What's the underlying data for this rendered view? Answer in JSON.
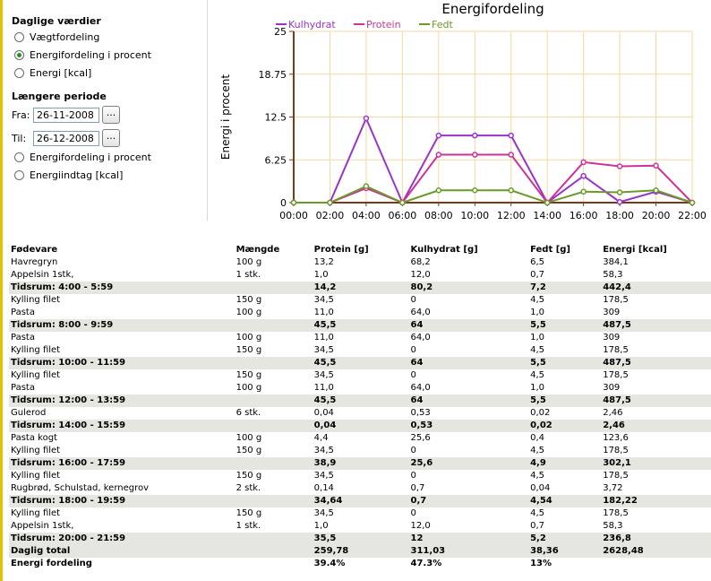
{
  "sidebar": {
    "daily_title": "Daglige værdier",
    "daily_options": [
      "Vægtfordeling",
      "Energifordeling i procent",
      "Energi [kcal]"
    ],
    "daily_selected": 1,
    "period_title": "Længere periode",
    "from_label": "Fra:",
    "from_value": "26-11-2008",
    "to_label": "Til:",
    "to_value": "26-12-2008",
    "picker_label": "...",
    "period_options": [
      "Energifordeling i procent",
      "Energiindtag [kcal]"
    ]
  },
  "colors": {
    "accent_bar": "#e8c000",
    "grid": "#f2d9a0",
    "axis": "#7a3a1a",
    "Kulhydrat": "#9933cc",
    "Protein": "#cc3399",
    "Fedt": "#6b9a2a",
    "subtotal_bg": "#e6e6e1"
  },
  "chart_data": {
    "type": "line",
    "title": "Energifordeling",
    "ylabel": "Energi i procent",
    "xlabel": "",
    "x": [
      "00:00",
      "02:00",
      "04:00",
      "06:00",
      "08:00",
      "10:00",
      "12:00",
      "14:00",
      "16:00",
      "18:00",
      "20:00",
      "22:00"
    ],
    "yticks": [
      "0",
      "6.25",
      "12.5",
      "18.75",
      "25"
    ],
    "ylim": [
      0,
      25
    ],
    "grid": true,
    "legend": "top-left",
    "series": [
      {
        "name": "Kulhydrat",
        "values": [
          0,
          0,
          12.3,
          0,
          9.8,
          9.8,
          9.8,
          0,
          3.9,
          0.1,
          1.6,
          0
        ]
      },
      {
        "name": "Protein",
        "values": [
          0,
          0,
          2.1,
          0,
          7.0,
          7.0,
          7.0,
          0,
          5.9,
          5.3,
          5.4,
          0
        ]
      },
      {
        "name": "Fedt",
        "values": [
          0,
          0,
          2.4,
          0,
          1.8,
          1.8,
          1.8,
          0,
          1.6,
          1.5,
          1.8,
          0
        ]
      }
    ]
  },
  "table": {
    "headers": [
      "Fødevare",
      "Mængde",
      "Protein [g]",
      "Kulhydrat [g]",
      "Fedt [g]",
      "Energi [kcal]"
    ],
    "rows": [
      {
        "type": "item",
        "cells": [
          "Havregryn",
          "100 g",
          "13,2",
          "68,2",
          "6,5",
          "384,1"
        ]
      },
      {
        "type": "item",
        "cells": [
          "Appelsin 1stk,",
          "1 stk.",
          "1,0",
          "12,0",
          "0,7",
          "58,3"
        ]
      },
      {
        "type": "sub",
        "cells": [
          "Tidsrum: 4:00 - 5:59",
          "",
          "14,2",
          "80,2",
          "7,2",
          "442,4"
        ]
      },
      {
        "type": "item",
        "cells": [
          "Kylling filet",
          "150 g",
          "34,5",
          "0",
          "4,5",
          "178,5"
        ]
      },
      {
        "type": "item",
        "cells": [
          "Pasta",
          "100 g",
          "11,0",
          "64,0",
          "1,0",
          "309"
        ]
      },
      {
        "type": "sub",
        "cells": [
          "Tidsrum: 8:00 - 9:59",
          "",
          "45,5",
          "64",
          "5,5",
          "487,5"
        ]
      },
      {
        "type": "item",
        "cells": [
          "Pasta",
          "100 g",
          "11,0",
          "64,0",
          "1,0",
          "309"
        ]
      },
      {
        "type": "item",
        "cells": [
          "Kylling filet",
          "150 g",
          "34,5",
          "0",
          "4,5",
          "178,5"
        ]
      },
      {
        "type": "sub",
        "cells": [
          "Tidsrum: 10:00 - 11:59",
          "",
          "45,5",
          "64",
          "5,5",
          "487,5"
        ]
      },
      {
        "type": "item",
        "cells": [
          "Kylling filet",
          "150 g",
          "34,5",
          "0",
          "4,5",
          "178,5"
        ]
      },
      {
        "type": "item",
        "cells": [
          "Pasta",
          "100 g",
          "11,0",
          "64,0",
          "1,0",
          "309"
        ]
      },
      {
        "type": "sub",
        "cells": [
          "Tidsrum: 12:00 - 13:59",
          "",
          "45,5",
          "64",
          "5,5",
          "487,5"
        ]
      },
      {
        "type": "item",
        "cells": [
          "Gulerod",
          "6 stk.",
          "0,04",
          "0,53",
          "0,02",
          "2,46"
        ]
      },
      {
        "type": "sub",
        "cells": [
          "Tidsrum: 14:00 - 15:59",
          "",
          "0,04",
          "0,53",
          "0,02",
          "2,46"
        ]
      },
      {
        "type": "item",
        "cells": [
          "Pasta kogt",
          "100 g",
          "4,4",
          "25,6",
          "0,4",
          "123,6"
        ]
      },
      {
        "type": "item",
        "cells": [
          "Kylling filet",
          "150 g",
          "34,5",
          "0",
          "4,5",
          "178,5"
        ]
      },
      {
        "type": "sub",
        "cells": [
          "Tidsrum: 16:00 - 17:59",
          "",
          "38,9",
          "25,6",
          "4,9",
          "302,1"
        ]
      },
      {
        "type": "item",
        "cells": [
          "Kylling filet",
          "150 g",
          "34,5",
          "0",
          "4,5",
          "178,5"
        ]
      },
      {
        "type": "item",
        "cells": [
          "Rugbrød, Schulstad, kernegrov",
          "2 stk.",
          "0,14",
          "0,7",
          "0,04",
          "3,72"
        ]
      },
      {
        "type": "sub",
        "cells": [
          "Tidsrum: 18:00 - 19:59",
          "",
          "34,64",
          "0,7",
          "4,54",
          "182,22"
        ]
      },
      {
        "type": "item",
        "cells": [
          "Kylling filet",
          "150 g",
          "34,5",
          "0",
          "4,5",
          "178,5"
        ]
      },
      {
        "type": "item",
        "cells": [
          "Appelsin 1stk,",
          "1 stk.",
          "1,0",
          "12,0",
          "0,7",
          "58,3"
        ]
      },
      {
        "type": "sub",
        "cells": [
          "Tidsrum: 20:00 - 21:59",
          "",
          "35,5",
          "12",
          "5,2",
          "236,8"
        ]
      },
      {
        "type": "total tot1",
        "cells": [
          "Daglig total",
          "",
          "259,78",
          "311,03",
          "38,36",
          "2628,48"
        ]
      },
      {
        "type": "total",
        "cells": [
          "Energi fordeling",
          "",
          "39.4%",
          "47.3%",
          "13%",
          ""
        ]
      }
    ]
  }
}
